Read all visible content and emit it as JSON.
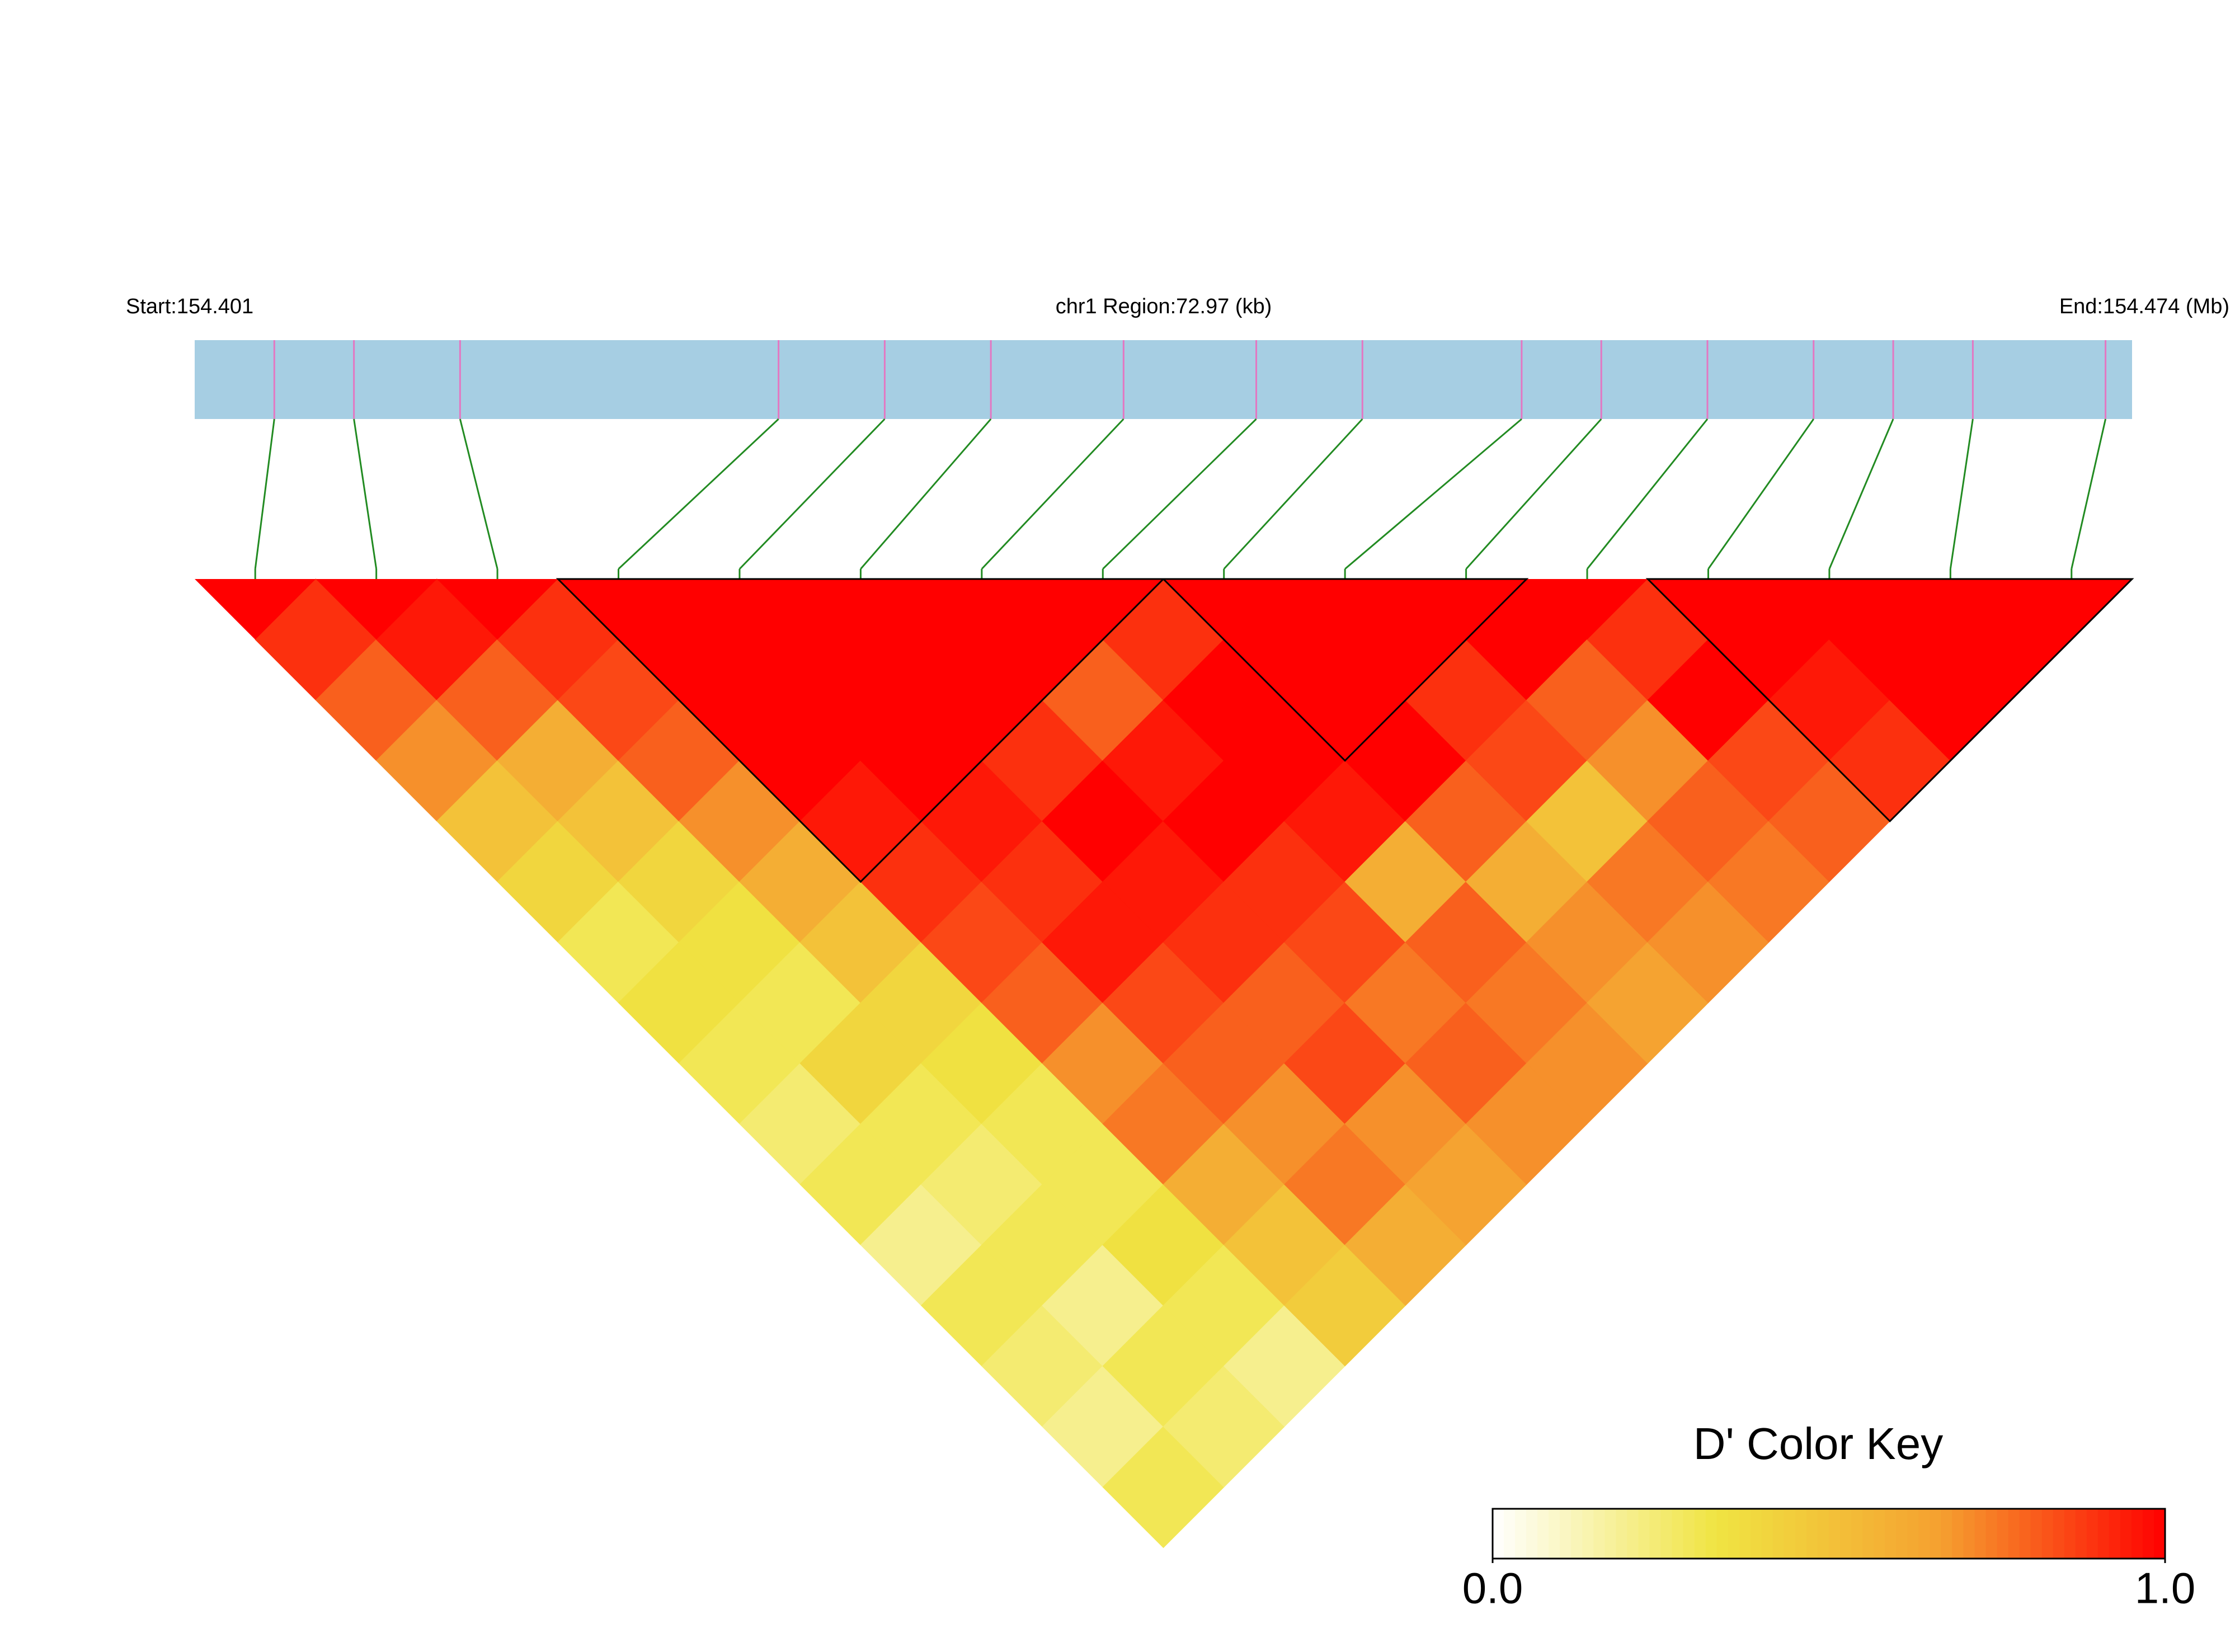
{
  "chart_data": {
    "type": "ld_heatmap",
    "start_label": "Start:154.401",
    "region_label": "chr1 Region:72.97 (kb)",
    "end_label": "End:154.474 (Mb)",
    "xlim": [
      154.401,
      154.474
    ],
    "snp_positions": [
      154.404,
      154.407,
      154.411,
      154.423,
      154.427,
      154.431,
      154.436,
      154.441,
      154.445,
      154.451,
      154.454,
      154.458,
      154.462,
      154.465,
      154.468,
      154.473
    ],
    "dprime": [
      [
        0.9,
        0.8,
        0.7,
        0.5,
        0.4,
        0.3,
        0.35,
        0.3,
        0.25,
        0.3,
        0.2,
        0.3,
        0.25,
        0.2,
        0.3
      ],
      [
        0.95,
        0.8,
        0.6,
        0.5,
        0.4,
        0.35,
        0.3,
        0.4,
        0.3,
        0.25,
        0.3,
        0.2,
        0.3,
        0.25
      ],
      [
        0.9,
        0.85,
        0.8,
        0.7,
        0.6,
        0.5,
        0.4,
        0.35,
        0.3,
        0.3,
        0.35,
        0.3,
        0.2
      ],
      [
        1,
        1,
        1,
        0.95,
        0.9,
        0.85,
        0.8,
        0.7,
        0.75,
        0.6,
        0.5,
        0.45
      ],
      [
        1,
        1,
        1,
        0.95,
        0.9,
        0.95,
        0.85,
        0.8,
        0.7,
        0.75,
        0.6
      ],
      [
        1,
        1,
        0.9,
        1,
        0.95,
        0.9,
        0.8,
        0.85,
        0.7,
        0.65
      ],
      [
        1,
        0.8,
        0.95,
        1,
        0.9,
        0.85,
        0.75,
        0.8,
        0.7
      ],
      [
        0.9,
        1,
        1,
        0.95,
        0.6,
        0.8,
        0.75,
        0.7
      ],
      [
        1,
        1,
        1,
        0.8,
        0.6,
        0.7,
        0.65
      ],
      [
        1,
        0.9,
        0.85,
        0.5,
        0.75,
        0.7
      ],
      [
        1,
        0.8,
        0.7,
        0.8,
        0.75
      ],
      [
        0.9,
        1,
        0.85,
        0.8
      ],
      [
        1,
        0.95,
        0.9
      ],
      [
        1,
        1
      ],
      [
        1
      ]
    ],
    "blocks": [
      [
        3,
        7
      ],
      [
        8,
        10
      ],
      [
        12,
        15
      ]
    ],
    "colors": [
      "#ffffff",
      "#f0e442",
      "#f5a030",
      "#ff0000"
    ],
    "track_color": "#a6cee3",
    "snp_color": "#e377c2",
    "link_color": "#228b22",
    "key_title": "D' Color Key",
    "key_range": [
      0,
      1
    ],
    "key_ticks": [
      {
        "value": 0,
        "label": "0.0"
      },
      {
        "value": 1,
        "label": "1.0"
      }
    ]
  }
}
